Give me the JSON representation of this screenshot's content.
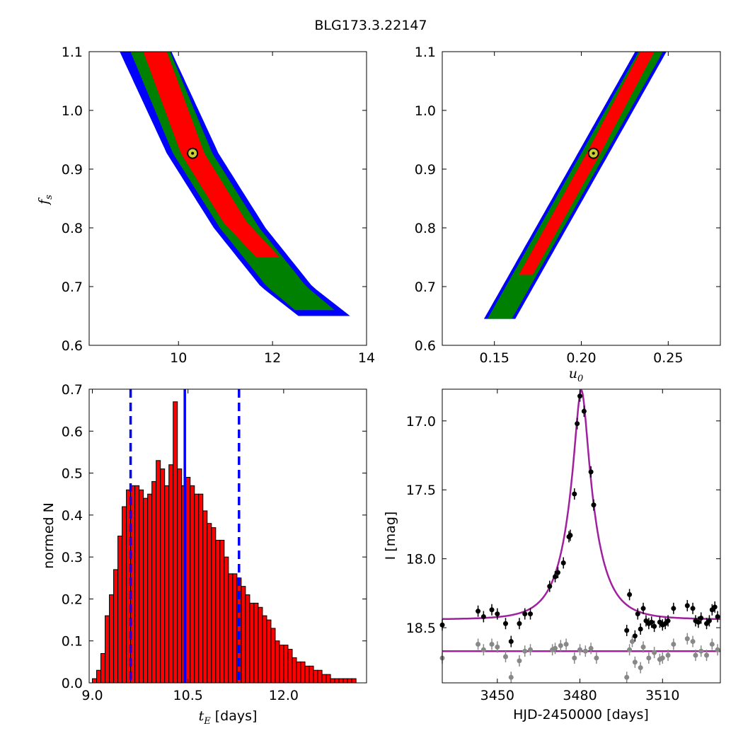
{
  "figure": {
    "title": "BLG173.3.22147"
  },
  "colors": {
    "hist_fill": "#ff0000",
    "hist_edge": "#000000",
    "median_line": "#0000ff",
    "conf_line": "#0000ff",
    "model_curve": "#a020a0",
    "marker_fill": "#cccc33",
    "data_primary": "#000000",
    "data_secondary": "#888888",
    "region_1sigma": "#ff0000",
    "region_2sigma": "#008000",
    "region_3sigma": "#0000ff"
  },
  "chart_data": [
    {
      "id": "tE_vs_fs",
      "type": "heatmap",
      "title": "",
      "xlabel": "",
      "ylabel": "f_s",
      "xlim": [
        8.1,
        14
      ],
      "ylim": [
        0.6,
        1.1
      ],
      "xticks": [
        "10",
        "12",
        "14"
      ],
      "yticks": [
        "0.6",
        "0.7",
        "0.8",
        "0.9",
        "1.0",
        "1.1"
      ],
      "best_fit": {
        "x": 10.3,
        "y": 0.927
      },
      "regions": [
        {
          "level": "3sigma",
          "color": "blue",
          "centerline": [
            [
              9.3,
              1.1
            ],
            [
              10.3,
              0.927
            ],
            [
              11.3,
              0.8
            ],
            [
              12.3,
              0.7
            ],
            [
              13.1,
              0.65
            ]
          ],
          "halfwidth": 0.55
        },
        {
          "level": "2sigma",
          "color": "green",
          "centerline": [
            [
              9.4,
              1.1
            ],
            [
              10.3,
              0.927
            ],
            [
              11.3,
              0.8
            ],
            [
              12.3,
              0.7
            ],
            [
              12.9,
              0.66
            ]
          ],
          "halfwidth": 0.42
        },
        {
          "level": "1sigma",
          "color": "red",
          "centerline": [
            [
              9.5,
              1.1
            ],
            [
              10.3,
              0.927
            ],
            [
              11.2,
              0.81
            ],
            [
              11.9,
              0.75
            ]
          ],
          "halfwidth": 0.25
        }
      ]
    },
    {
      "id": "u0_vs_fs",
      "type": "heatmap",
      "title": "",
      "xlabel": "u_0",
      "ylabel": "",
      "xlim": [
        0.12,
        0.28
      ],
      "ylim": [
        0.6,
        1.1
      ],
      "xticks": [
        "0.15",
        "0.20",
        "0.25"
      ],
      "yticks": [
        "0.6",
        "0.7",
        "0.8",
        "0.9",
        "1.0",
        "1.1"
      ],
      "best_fit": {
        "x": 0.207,
        "y": 0.927
      },
      "regions": [
        {
          "level": "3sigma",
          "color": "blue",
          "centerline": [
            [
              0.153,
              0.645
            ],
            [
              0.207,
              0.927
            ],
            [
              0.24,
              1.1
            ]
          ],
          "halfwidth": 0.009
        },
        {
          "level": "2sigma",
          "color": "green",
          "centerline": [
            [
              0.153,
              0.645
            ],
            [
              0.207,
              0.927
            ],
            [
              0.24,
              1.1
            ]
          ],
          "halfwidth": 0.007
        },
        {
          "level": "1sigma",
          "color": "red",
          "centerline": [
            [
              0.168,
              0.72
            ],
            [
              0.207,
              0.927
            ],
            [
              0.238,
              1.1
            ]
          ],
          "halfwidth": 0.004
        }
      ]
    },
    {
      "id": "tE_histogram",
      "type": "bar",
      "title": "",
      "xlabel": "t_E [days]",
      "ylabel": "normed N",
      "xlim": [
        8.95,
        13.3
      ],
      "ylim": [
        0,
        0.7
      ],
      "xticks": [
        "9.0",
        "10.5",
        "12.0"
      ],
      "yticks": [
        "0.0",
        "0.1",
        "0.2",
        "0.3",
        "0.4",
        "0.5",
        "0.6",
        "0.7"
      ],
      "bin_start": 9.0,
      "bin_width": 0.0667,
      "values": [
        0.01,
        0.03,
        0.07,
        0.16,
        0.21,
        0.27,
        0.35,
        0.42,
        0.46,
        0.47,
        0.47,
        0.46,
        0.44,
        0.45,
        0.48,
        0.53,
        0.51,
        0.47,
        0.52,
        0.67,
        0.51,
        0.47,
        0.49,
        0.47,
        0.45,
        0.45,
        0.41,
        0.38,
        0.37,
        0.34,
        0.34,
        0.3,
        0.26,
        0.26,
        0.25,
        0.23,
        0.21,
        0.19,
        0.19,
        0.18,
        0.16,
        0.15,
        0.13,
        0.1,
        0.09,
        0.09,
        0.08,
        0.06,
        0.05,
        0.05,
        0.04,
        0.04,
        0.03,
        0.03,
        0.02,
        0.02,
        0.01,
        0.01,
        0.01,
        0.01,
        0.01,
        0.01
      ],
      "median": 10.45,
      "conf_interval": [
        9.6,
        11.3
      ]
    },
    {
      "id": "light_curve",
      "type": "scatter",
      "title": "",
      "xlabel": "HJD-2450000 [days]",
      "ylabel": "I [mag]",
      "xlim": [
        3430,
        3531
      ],
      "ylim": [
        18.9,
        16.77
      ],
      "y_inverted": true,
      "xticks": [
        "3450",
        "3480",
        "3510"
      ],
      "yticks": [
        "17.0",
        "17.5",
        "18.0",
        "18.5"
      ],
      "model": {
        "t0": 3480.5,
        "u0": 0.207,
        "tE": 10.3,
        "fs": 0.927,
        "baseline": 18.44
      },
      "model_secondary": {
        "level": 18.67
      },
      "series": [
        {
          "color": "black",
          "x": [
            3430,
            3443,
            3445,
            3448,
            3450,
            3453,
            3455,
            3458,
            3460,
            3462,
            3469,
            3471,
            3472,
            3474,
            3476,
            3476.5,
            3478,
            3479,
            3480,
            3481.5,
            3484,
            3485,
            3497,
            3498,
            3500,
            3501,
            3502,
            3503,
            3504,
            3505,
            3506,
            3507,
            3509,
            3510,
            3511,
            3512,
            3514,
            3519,
            3521,
            3522,
            3523,
            3524,
            3526,
            3527,
            3528,
            3529,
            3530
          ],
          "y": [
            18.48,
            18.38,
            18.42,
            18.37,
            18.4,
            18.47,
            18.6,
            18.47,
            18.4,
            18.4,
            18.2,
            18.13,
            18.1,
            18.03,
            17.84,
            17.83,
            17.53,
            17.02,
            16.82,
            16.93,
            17.37,
            17.61,
            18.52,
            18.26,
            18.56,
            18.4,
            18.51,
            18.36,
            18.45,
            18.47,
            18.46,
            18.49,
            18.46,
            18.48,
            18.47,
            18.45,
            18.36,
            18.34,
            18.36,
            18.45,
            18.46,
            18.43,
            18.47,
            18.45,
            18.37,
            18.35,
            18.42
          ]
        },
        {
          "color": "gray",
          "x": [
            3430,
            3443,
            3445,
            3448,
            3450,
            3453,
            3455,
            3458,
            3460,
            3462,
            3470,
            3471,
            3473,
            3475,
            3478,
            3480,
            3482,
            3484,
            3486,
            3497,
            3498,
            3499,
            3500,
            3502,
            3503,
            3505,
            3507,
            3509,
            3510,
            3512,
            3514,
            3519,
            3521,
            3522,
            3524,
            3526,
            3528,
            3530
          ],
          "y": [
            18.72,
            18.62,
            18.66,
            18.62,
            18.64,
            18.71,
            18.86,
            18.74,
            18.67,
            18.66,
            18.66,
            18.65,
            18.63,
            18.62,
            18.72,
            18.66,
            18.67,
            18.65,
            18.72,
            18.86,
            18.66,
            18.6,
            18.75,
            18.79,
            18.64,
            18.72,
            18.68,
            18.73,
            18.72,
            18.7,
            18.62,
            18.58,
            18.6,
            18.7,
            18.67,
            18.7,
            18.62,
            18.66
          ]
        }
      ]
    }
  ]
}
